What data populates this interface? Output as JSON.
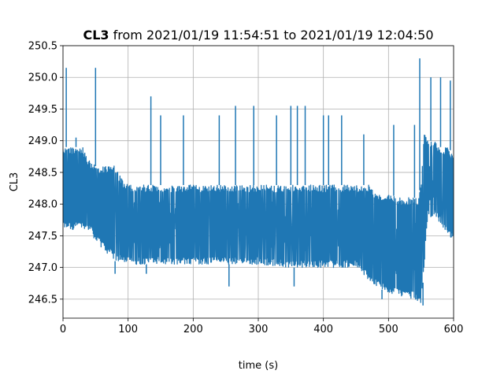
{
  "chart_data": {
    "type": "line",
    "title_bold": "CL3",
    "title_rest": " from 2021/01/19 11:54:51 to 2021/01/19 12:04:50",
    "xlabel": "time (s)",
    "ylabel": "CL3",
    "xlim": [
      0,
      600
    ],
    "ylim": [
      246.2,
      250.5
    ],
    "xticks": [
      0,
      100,
      200,
      300,
      400,
      500,
      600
    ],
    "xtick_labels": [
      "0",
      "100",
      "200",
      "300",
      "400",
      "500",
      "600"
    ],
    "yticks": [
      246.5,
      247.0,
      247.5,
      248.0,
      248.5,
      249.0,
      249.5,
      250.0,
      250.5
    ],
    "ytick_labels": [
      "246.5",
      "247.0",
      "247.5",
      "248.0",
      "248.5",
      "249.0",
      "249.5",
      "250.0",
      "250.5"
    ],
    "grid": true,
    "series_color": "#1f77b4",
    "envelope": {
      "t": [
        0,
        5,
        10,
        20,
        30,
        40,
        50,
        60,
        70,
        80,
        90,
        100,
        120,
        150,
        200,
        250,
        300,
        350,
        400,
        450,
        470,
        480,
        490,
        500,
        520,
        540,
        545,
        550,
        555,
        560,
        570,
        580,
        590,
        600
      ],
      "low": [
        247.6,
        247.6,
        247.6,
        247.6,
        247.6,
        247.6,
        247.4,
        247.3,
        247.2,
        247.1,
        247.1,
        247.05,
        247.05,
        247.05,
        247.05,
        247.05,
        247.05,
        247.0,
        247.0,
        247.0,
        246.8,
        246.7,
        246.65,
        246.6,
        246.55,
        246.5,
        246.45,
        246.4,
        247.0,
        247.8,
        247.8,
        247.7,
        247.5,
        247.4
      ],
      "high": [
        248.9,
        248.9,
        248.9,
        248.9,
        248.9,
        248.7,
        248.6,
        248.6,
        248.6,
        248.6,
        248.4,
        248.3,
        248.3,
        248.3,
        248.3,
        248.3,
        248.3,
        248.3,
        248.3,
        248.3,
        248.3,
        248.2,
        248.15,
        248.15,
        248.1,
        248.1,
        248.1,
        248.3,
        249.2,
        249.0,
        249.0,
        248.9,
        248.9,
        248.8
      ]
    },
    "spikes": [
      {
        "t": 5,
        "v": 250.15
      },
      {
        "t": 20,
        "v": 249.05
      },
      {
        "t": 50,
        "v": 250.15
      },
      {
        "t": 135,
        "v": 249.7
      },
      {
        "t": 150,
        "v": 249.4
      },
      {
        "t": 185,
        "v": 249.4
      },
      {
        "t": 240,
        "v": 249.4
      },
      {
        "t": 265,
        "v": 249.55
      },
      {
        "t": 293,
        "v": 249.55
      },
      {
        "t": 328,
        "v": 249.4
      },
      {
        "t": 350,
        "v": 249.55
      },
      {
        "t": 360,
        "v": 249.55
      },
      {
        "t": 372,
        "v": 249.55
      },
      {
        "t": 400,
        "v": 249.4
      },
      {
        "t": 408,
        "v": 249.4
      },
      {
        "t": 428,
        "v": 249.4
      },
      {
        "t": 462,
        "v": 249.1
      },
      {
        "t": 508,
        "v": 249.25
      },
      {
        "t": 540,
        "v": 249.25
      },
      {
        "t": 548,
        "v": 250.3
      },
      {
        "t": 565,
        "v": 250.0
      },
      {
        "t": 580,
        "v": 250.0
      },
      {
        "t": 595,
        "v": 249.95
      }
    ],
    "dips": [
      {
        "t": 80,
        "v": 246.9
      },
      {
        "t": 128,
        "v": 246.9
      },
      {
        "t": 255,
        "v": 246.7
      },
      {
        "t": 355,
        "v": 246.7
      },
      {
        "t": 490,
        "v": 246.5
      },
      {
        "t": 553,
        "v": 246.4
      }
    ]
  }
}
